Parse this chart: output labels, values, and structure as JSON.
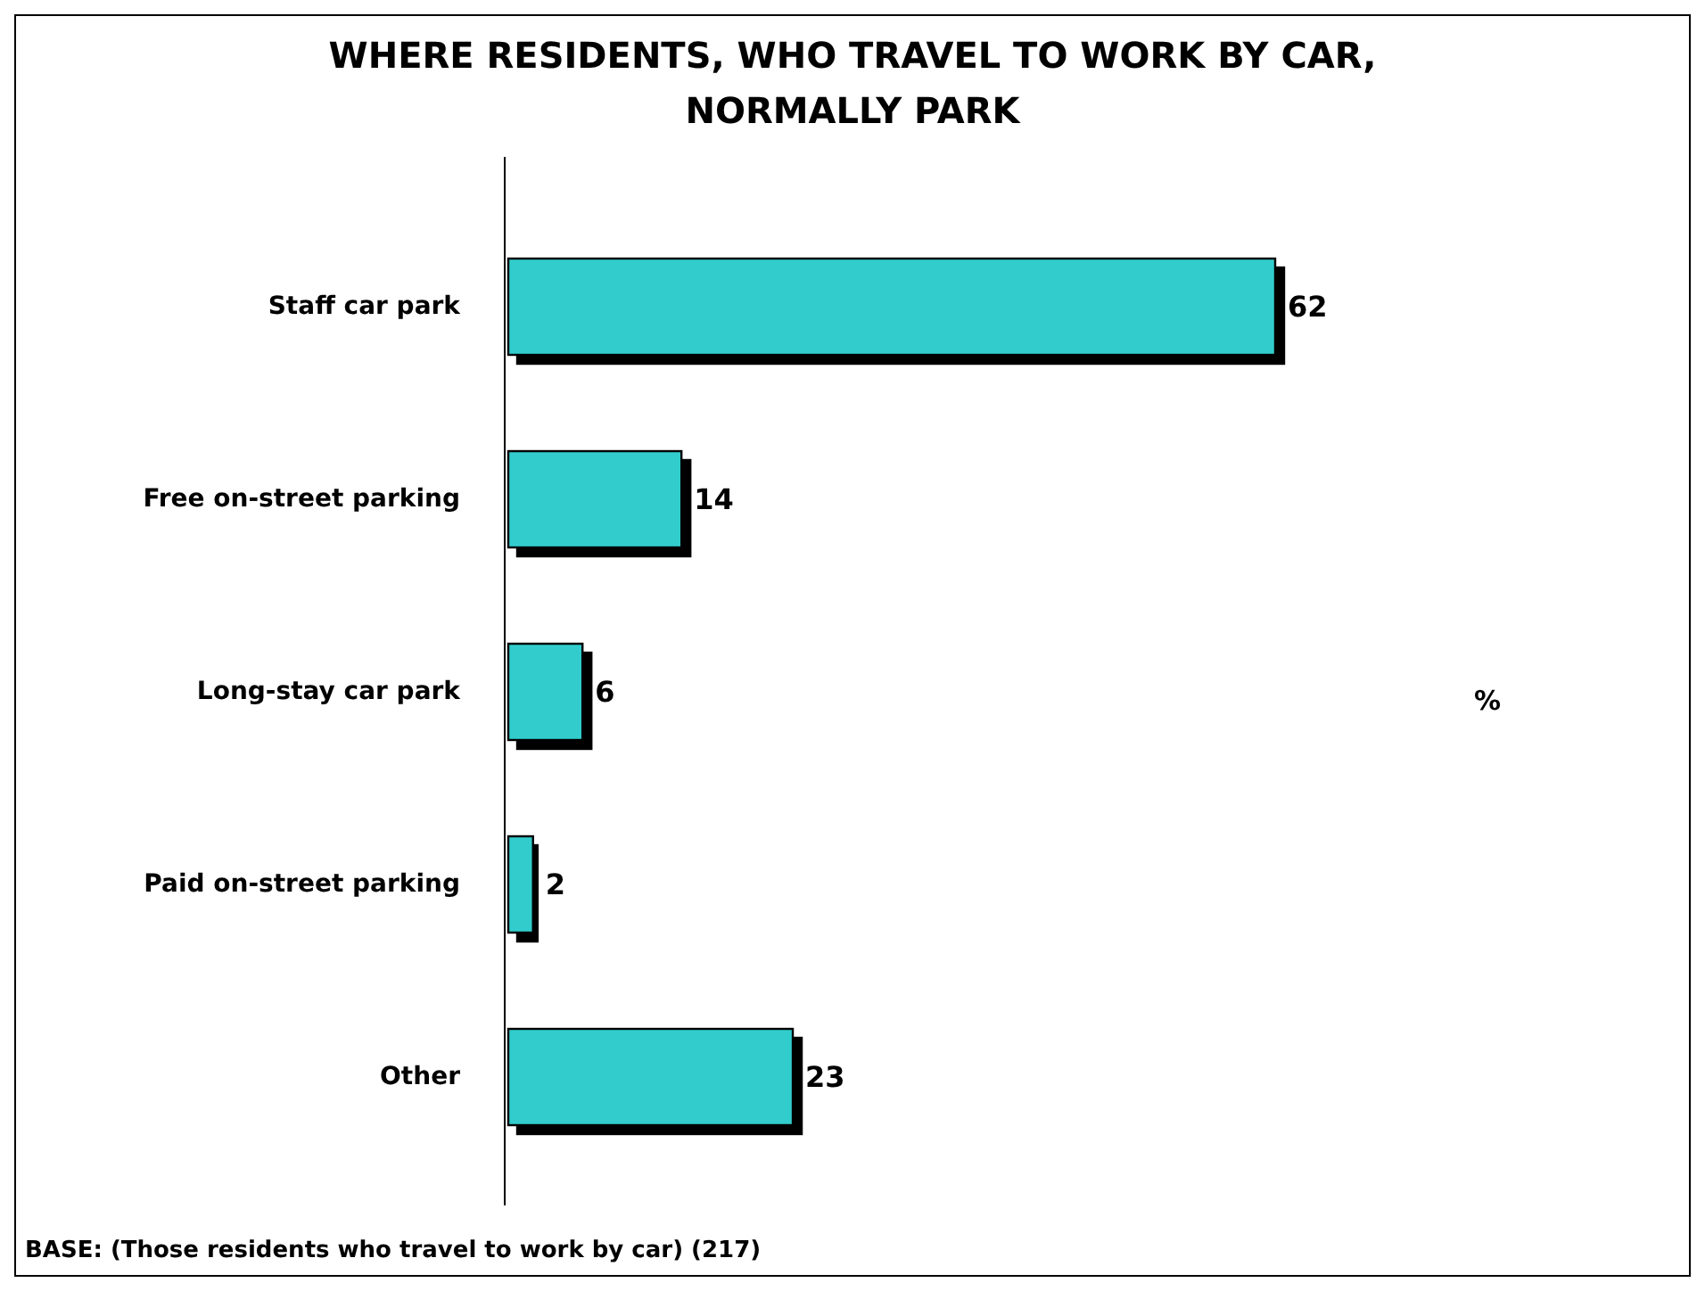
{
  "chart_data": {
    "type": "bar",
    "orientation": "horizontal",
    "title": "WHERE RESIDENTS, WHO TRAVEL TO WORK BY CAR,\nNORMALLY PARK",
    "categories": [
      "Staff car park",
      "Free on-street parking",
      "Long-stay car park",
      "Paid on-street parking",
      "Other"
    ],
    "values": [
      62,
      14,
      6,
      2,
      23
    ],
    "color": "#33cccc",
    "data_labels": true,
    "tick_labels": "y",
    "annotations": [
      "%",
      "BASE: (Those residents who travel to work by car) (217)"
    ]
  }
}
